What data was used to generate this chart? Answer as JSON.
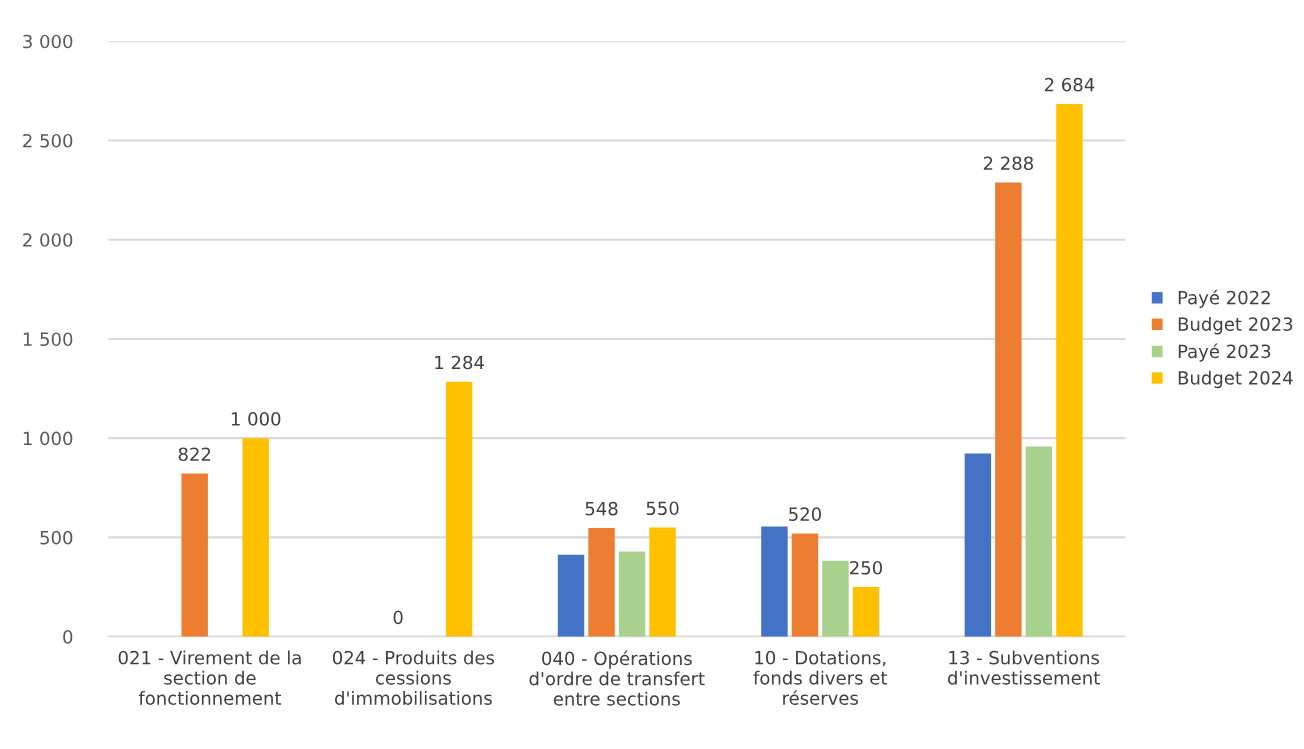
{
  "chart_data": {
    "type": "bar",
    "categories": [
      "021 - Virement de la section de fonctionnement",
      "024 - Produits des cessions d'immobilisations",
      "040 - Opérations d'ordre de transfert entre sections",
      "10 - Dotations, fonds divers et réserves",
      "13 - Subventions d'investissement"
    ],
    "series": [
      {
        "name": "Payé 2022",
        "color": "#4472c4",
        "values": [
          null,
          null,
          413,
          555,
          923
        ]
      },
      {
        "name": "Budget 2023",
        "color": "#ed7d31",
        "values": [
          822,
          0,
          548,
          520,
          2288
        ],
        "value_labels": [
          "822",
          "0",
          "548",
          "520",
          "2 288"
        ]
      },
      {
        "name": "Payé 2023",
        "color": "#a9d18e",
        "values": [
          null,
          null,
          429,
          383,
          958
        ]
      },
      {
        "name": "Budget 2024",
        "color": "#ffc000",
        "values": [
          1000,
          1284,
          550,
          250,
          2684
        ],
        "value_labels": [
          "1 000",
          "1 284",
          "550",
          "250",
          "2 684"
        ]
      }
    ],
    "ylim": [
      0,
      3000
    ],
    "yticks": [
      {
        "value": 0,
        "label": "0"
      },
      {
        "value": 500,
        "label": "500"
      },
      {
        "value": 1000,
        "label": "1 000"
      },
      {
        "value": 1500,
        "label": "1 500"
      },
      {
        "value": 2000,
        "label": "2 000"
      },
      {
        "value": 2500,
        "label": "2 500"
      },
      {
        "value": 3000,
        "label": "3 000"
      }
    ],
    "grid": "y",
    "legend": "right"
  }
}
